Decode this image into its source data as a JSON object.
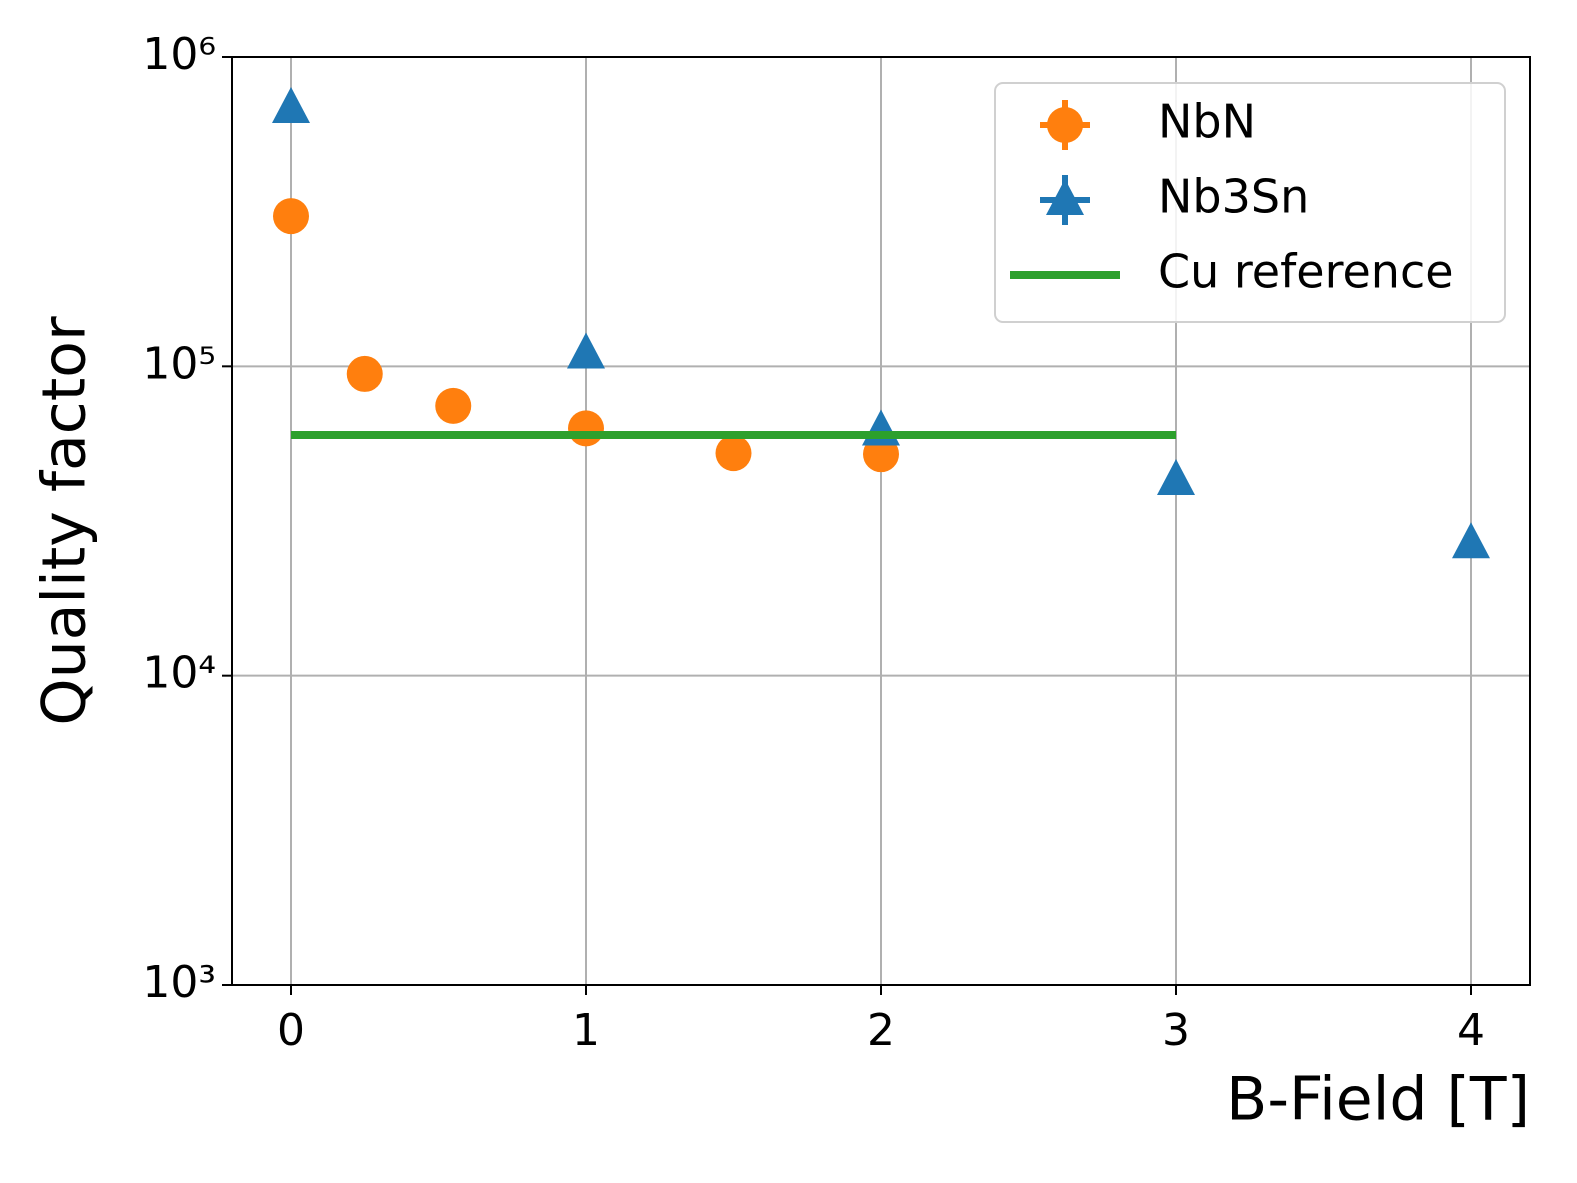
{
  "chart_data": {
    "type": "scatter",
    "x_label": "B-Field [T]",
    "y_label": "Quality factor",
    "xlim": [
      -0.2,
      4.2
    ],
    "xticks": [
      0,
      1,
      2,
      3,
      4
    ],
    "ylim": [
      1000,
      1000000
    ],
    "yscale": "log",
    "yticks": [
      {
        "value": 1000,
        "label": "10³"
      },
      {
        "value": 10000,
        "label": "10⁴"
      },
      {
        "value": 100000,
        "label": "10⁵"
      },
      {
        "value": 1000000,
        "label": "10⁶"
      }
    ],
    "grid": true,
    "legend": "upper right",
    "series": [
      {
        "name": "NbN",
        "color": "#ff7f0e",
        "marker": "circle",
        "x": [
          0,
          0.25,
          0.55,
          1,
          1.5,
          2
        ],
        "values": [
          306000,
          94500,
          74500,
          63000,
          52400,
          52000
        ]
      },
      {
        "name": "Nb3Sn",
        "color": "#1f77b4",
        "marker": "triangle",
        "x": [
          0,
          1,
          2,
          3,
          4
        ],
        "values": [
          684000,
          110000,
          62000,
          42900,
          26800
        ]
      },
      {
        "name": "Cu reference",
        "color": "#2ca02c",
        "marker": "line",
        "x": [
          0,
          3
        ],
        "values": [
          60000,
          60000
        ]
      }
    ]
  }
}
